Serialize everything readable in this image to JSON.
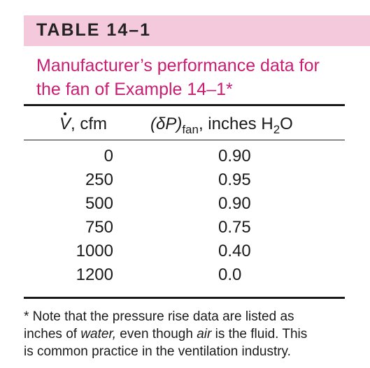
{
  "table": {
    "label": "TABLE 14–1",
    "caption_line1": "Manufacturer’s performance data for",
    "caption_line2": "the fan of Example 14–1*",
    "col1_head_sym": "V",
    "col1_head_rest": ", cfm",
    "col2_head_open": "(δP)",
    "col2_head_sub": "fan",
    "col2_head_rest": ", inches H",
    "col2_head_sub2": "2",
    "col2_head_end": "O",
    "rows": [
      {
        "flow": "0",
        "pressure": "0.90"
      },
      {
        "flow": "250",
        "pressure": "0.95"
      },
      {
        "flow": "500",
        "pressure": "0.90"
      },
      {
        "flow": "750",
        "pressure": "0.75"
      },
      {
        "flow": "1000",
        "pressure": "0.40"
      },
      {
        "flow": "1200",
        "pressure": "0.0"
      }
    ],
    "footnote_a": "* Note that the pressure rise data are listed as",
    "footnote_b": "inches of ",
    "footnote_water": "water,",
    "footnote_c": " even though ",
    "footnote_air": "air",
    "footnote_d": " is the fluid. This",
    "footnote_e": "is common practice in the ventilation industry."
  }
}
